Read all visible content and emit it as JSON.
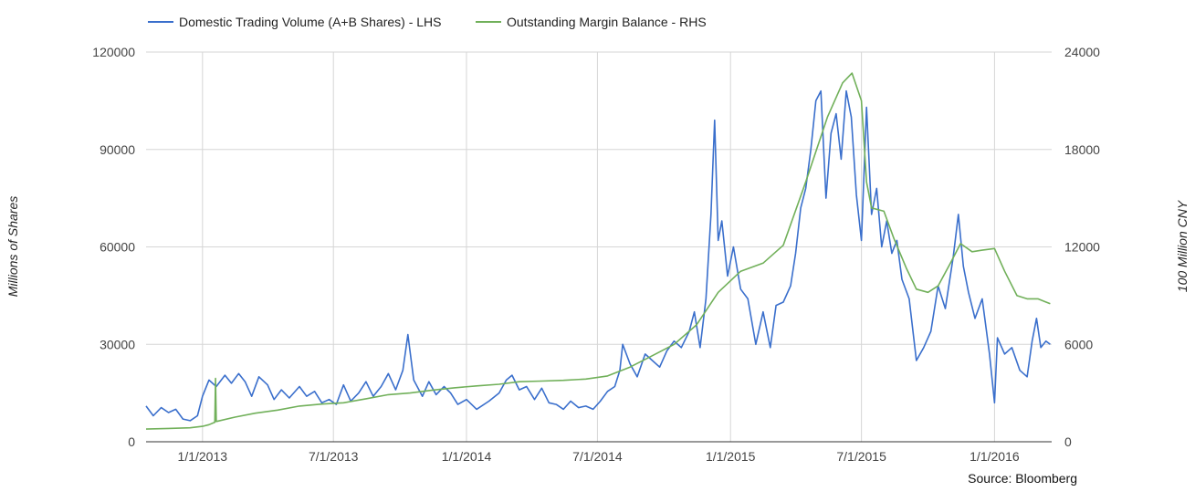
{
  "source": "Source: Bloomberg",
  "chart_data": {
    "type": "line",
    "title": "",
    "xlabel": "",
    "ylabel": "Millions of Shares",
    "y2label": "100 Million CNY",
    "ylim": [
      0,
      120000
    ],
    "y2lim": [
      0,
      24000
    ],
    "xlim": [
      "2012-10-15",
      "2016-03-20"
    ],
    "yticks": [
      "0",
      "30000",
      "60000",
      "90000",
      "120000"
    ],
    "y2ticks": [
      "0",
      "6000",
      "12000",
      "18000",
      "24000"
    ],
    "xticks": [
      {
        "label": "1/1/2013",
        "date": "2013-01-01"
      },
      {
        "label": "7/1/2013",
        "date": "2013-07-01"
      },
      {
        "label": "1/1/2014",
        "date": "2014-01-01"
      },
      {
        "label": "7/1/2014",
        "date": "2014-07-01"
      },
      {
        "label": "1/1/2015",
        "date": "2015-01-01"
      },
      {
        "label": "7/1/2015",
        "date": "2015-07-01"
      },
      {
        "label": "1/1/2016",
        "date": "2016-01-01"
      }
    ],
    "grid": true,
    "legend_position": "top-left",
    "series": [
      {
        "name": "Domestic Trading Volume (A+B Shares) - LHS",
        "axis": "left",
        "color": "#3a6fcc",
        "points": [
          [
            "2012-10-15",
            11000
          ],
          [
            "2012-10-25",
            8000
          ],
          [
            "2012-11-05",
            10500
          ],
          [
            "2012-11-15",
            9000
          ],
          [
            "2012-11-25",
            10000
          ],
          [
            "2012-12-05",
            7000
          ],
          [
            "2012-12-15",
            6500
          ],
          [
            "2012-12-25",
            8000
          ],
          [
            "2013-01-01",
            14000
          ],
          [
            "2013-01-10",
            19000
          ],
          [
            "2013-01-20",
            17000
          ],
          [
            "2013-02-01",
            20500
          ],
          [
            "2013-02-10",
            18000
          ],
          [
            "2013-02-20",
            21000
          ],
          [
            "2013-03-01",
            18500
          ],
          [
            "2013-03-10",
            14000
          ],
          [
            "2013-03-20",
            20000
          ],
          [
            "2013-04-01",
            17500
          ],
          [
            "2013-04-10",
            13000
          ],
          [
            "2013-04-20",
            16000
          ],
          [
            "2013-05-01",
            13500
          ],
          [
            "2013-05-15",
            17000
          ],
          [
            "2013-05-25",
            14000
          ],
          [
            "2013-06-05",
            15500
          ],
          [
            "2013-06-15",
            12000
          ],
          [
            "2013-06-25",
            13000
          ],
          [
            "2013-07-05",
            11500
          ],
          [
            "2013-07-15",
            17500
          ],
          [
            "2013-07-25",
            12500
          ],
          [
            "2013-08-05",
            15000
          ],
          [
            "2013-08-15",
            18500
          ],
          [
            "2013-08-25",
            14000
          ],
          [
            "2013-09-05",
            17000
          ],
          [
            "2013-09-15",
            21000
          ],
          [
            "2013-09-25",
            16000
          ],
          [
            "2013-10-05",
            22000
          ],
          [
            "2013-10-12",
            33000
          ],
          [
            "2013-10-20",
            19000
          ],
          [
            "2013-11-01",
            14000
          ],
          [
            "2013-11-10",
            18500
          ],
          [
            "2013-11-20",
            14500
          ],
          [
            "2013-12-01",
            17000
          ],
          [
            "2013-12-10",
            15000
          ],
          [
            "2013-12-20",
            11500
          ],
          [
            "2014-01-01",
            13000
          ],
          [
            "2014-01-15",
            10000
          ],
          [
            "2014-02-01",
            12500
          ],
          [
            "2014-02-15",
            15000
          ],
          [
            "2014-02-25",
            19000
          ],
          [
            "2014-03-05",
            20500
          ],
          [
            "2014-03-15",
            16000
          ],
          [
            "2014-03-25",
            17000
          ],
          [
            "2014-04-05",
            13000
          ],
          [
            "2014-04-15",
            16500
          ],
          [
            "2014-04-25",
            12000
          ],
          [
            "2014-05-05",
            11500
          ],
          [
            "2014-05-15",
            10000
          ],
          [
            "2014-05-25",
            12500
          ],
          [
            "2014-06-05",
            10500
          ],
          [
            "2014-06-15",
            11000
          ],
          [
            "2014-06-25",
            10000
          ],
          [
            "2014-07-05",
            12500
          ],
          [
            "2014-07-15",
            15500
          ],
          [
            "2014-07-25",
            17000
          ],
          [
            "2014-08-01",
            22000
          ],
          [
            "2014-08-05",
            30000
          ],
          [
            "2014-08-15",
            24000
          ],
          [
            "2014-08-25",
            20000
          ],
          [
            "2014-09-05",
            27000
          ],
          [
            "2014-09-15",
            25000
          ],
          [
            "2014-09-25",
            23000
          ],
          [
            "2014-10-05",
            28000
          ],
          [
            "2014-10-15",
            31000
          ],
          [
            "2014-10-25",
            29000
          ],
          [
            "2014-11-05",
            34000
          ],
          [
            "2014-11-12",
            40000
          ],
          [
            "2014-11-20",
            29000
          ],
          [
            "2014-11-28",
            44000
          ],
          [
            "2014-12-05",
            70000
          ],
          [
            "2014-12-10",
            99000
          ],
          [
            "2014-12-15",
            62000
          ],
          [
            "2014-12-20",
            68000
          ],
          [
            "2014-12-28",
            51000
          ],
          [
            "2015-01-05",
            60000
          ],
          [
            "2015-01-15",
            47000
          ],
          [
            "2015-01-25",
            44000
          ],
          [
            "2015-02-05",
            30000
          ],
          [
            "2015-02-15",
            40000
          ],
          [
            "2015-02-25",
            29000
          ],
          [
            "2015-03-05",
            42000
          ],
          [
            "2015-03-15",
            43000
          ],
          [
            "2015-03-25",
            48000
          ],
          [
            "2015-04-01",
            58000
          ],
          [
            "2015-04-08",
            72000
          ],
          [
            "2015-04-15",
            78000
          ],
          [
            "2015-04-22",
            90000
          ],
          [
            "2015-04-29",
            105000
          ],
          [
            "2015-05-06",
            108000
          ],
          [
            "2015-05-13",
            75000
          ],
          [
            "2015-05-20",
            95000
          ],
          [
            "2015-05-27",
            101000
          ],
          [
            "2015-06-03",
            87000
          ],
          [
            "2015-06-10",
            108000
          ],
          [
            "2015-06-17",
            100000
          ],
          [
            "2015-06-24",
            76000
          ],
          [
            "2015-07-01",
            62000
          ],
          [
            "2015-07-08",
            103000
          ],
          [
            "2015-07-15",
            70000
          ],
          [
            "2015-07-22",
            78000
          ],
          [
            "2015-07-29",
            60000
          ],
          [
            "2015-08-05",
            68000
          ],
          [
            "2015-08-12",
            58000
          ],
          [
            "2015-08-19",
            62000
          ],
          [
            "2015-08-26",
            50000
          ],
          [
            "2015-09-05",
            44000
          ],
          [
            "2015-09-15",
            25000
          ],
          [
            "2015-09-25",
            29000
          ],
          [
            "2015-10-05",
            34000
          ],
          [
            "2015-10-15",
            48000
          ],
          [
            "2015-10-25",
            41000
          ],
          [
            "2015-11-05",
            57000
          ],
          [
            "2015-11-12",
            70000
          ],
          [
            "2015-11-19",
            54000
          ],
          [
            "2015-11-26",
            46000
          ],
          [
            "2015-12-05",
            38000
          ],
          [
            "2015-12-15",
            44000
          ],
          [
            "2015-12-25",
            27000
          ],
          [
            "2016-01-01",
            12000
          ],
          [
            "2016-01-05",
            32000
          ],
          [
            "2016-01-15",
            27000
          ],
          [
            "2016-01-25",
            29000
          ],
          [
            "2016-02-05",
            22000
          ],
          [
            "2016-02-15",
            20000
          ],
          [
            "2016-02-22",
            31000
          ],
          [
            "2016-02-28",
            38000
          ],
          [
            "2016-03-05",
            29000
          ],
          [
            "2016-03-12",
            31000
          ],
          [
            "2016-03-18",
            30000
          ]
        ]
      },
      {
        "name": "Outstanding Margin Balance - RHS",
        "axis": "right",
        "color": "#71b05a",
        "points": [
          [
            "2012-10-15",
            780
          ],
          [
            "2012-11-15",
            820
          ],
          [
            "2012-12-15",
            860
          ],
          [
            "2013-01-01",
            950
          ],
          [
            "2013-01-10",
            1050
          ],
          [
            "2013-01-18",
            1200
          ],
          [
            "2013-01-19",
            3900
          ],
          [
            "2013-01-20",
            1250
          ],
          [
            "2013-02-15",
            1520
          ],
          [
            "2013-03-15",
            1760
          ],
          [
            "2013-04-15",
            1950
          ],
          [
            "2013-05-15",
            2200
          ],
          [
            "2013-06-15",
            2320
          ],
          [
            "2013-07-15",
            2400
          ],
          [
            "2013-08-15",
            2650
          ],
          [
            "2013-09-15",
            2900
          ],
          [
            "2013-10-15",
            3000
          ],
          [
            "2013-11-15",
            3180
          ],
          [
            "2013-12-15",
            3320
          ],
          [
            "2014-01-15",
            3440
          ],
          [
            "2014-02-15",
            3540
          ],
          [
            "2014-03-15",
            3700
          ],
          [
            "2014-04-15",
            3740
          ],
          [
            "2014-05-15",
            3780
          ],
          [
            "2014-06-15",
            3860
          ],
          [
            "2014-07-15",
            4050
          ],
          [
            "2014-08-15",
            4600
          ],
          [
            "2014-09-15",
            5300
          ],
          [
            "2014-10-15",
            6000
          ],
          [
            "2014-11-15",
            7200
          ],
          [
            "2014-12-15",
            9200
          ],
          [
            "2015-01-15",
            10500
          ],
          [
            "2015-02-15",
            11000
          ],
          [
            "2015-03-15",
            12100
          ],
          [
            "2015-04-15",
            16000
          ],
          [
            "2015-05-15",
            20000
          ],
          [
            "2015-06-05",
            22100
          ],
          [
            "2015-06-18",
            22700
          ],
          [
            "2015-07-01",
            21000
          ],
          [
            "2015-07-08",
            16000
          ],
          [
            "2015-07-15",
            14400
          ],
          [
            "2015-08-01",
            14200
          ],
          [
            "2015-08-15",
            12500
          ],
          [
            "2015-09-01",
            10700
          ],
          [
            "2015-09-15",
            9400
          ],
          [
            "2015-10-01",
            9200
          ],
          [
            "2015-10-15",
            9600
          ],
          [
            "2015-11-01",
            11000
          ],
          [
            "2015-11-15",
            12200
          ],
          [
            "2015-12-01",
            11700
          ],
          [
            "2015-12-15",
            11800
          ],
          [
            "2016-01-01",
            11900
          ],
          [
            "2016-01-15",
            10500
          ],
          [
            "2016-02-01",
            9000
          ],
          [
            "2016-02-15",
            8800
          ],
          [
            "2016-03-01",
            8800
          ],
          [
            "2016-03-18",
            8500
          ]
        ]
      }
    ]
  }
}
